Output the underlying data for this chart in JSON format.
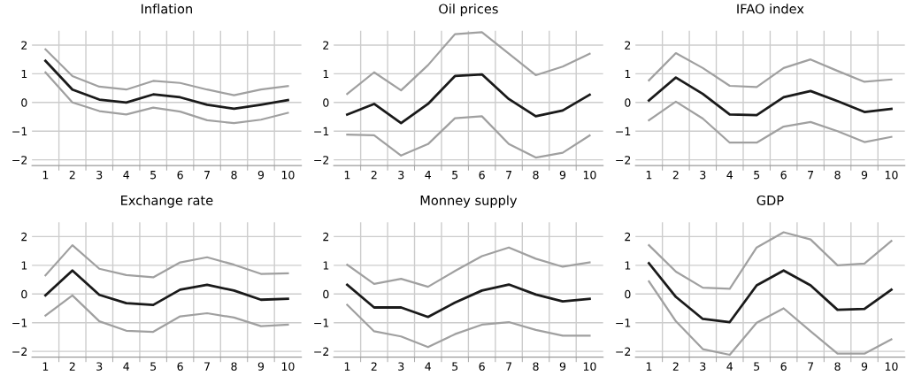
{
  "chart_data": [
    {
      "type": "line",
      "title": "Inflation",
      "x": [
        1,
        2,
        3,
        4,
        5,
        6,
        7,
        8,
        9,
        10
      ],
      "xlim": [
        0.5,
        10.5
      ],
      "ylim": [
        -2.2,
        2.5
      ],
      "yticks": [
        -2,
        -1,
        0,
        1,
        2
      ],
      "xticks": [
        1,
        2,
        3,
        4,
        5,
        6,
        7,
        8,
        9,
        10,
        {
          "value": 1.5,
          "label": null
        },
        {
          "value": 2.5,
          "label": null
        },
        {
          "value": 3.5,
          "label": null
        },
        {
          "value": 4.5,
          "label": null
        },
        {
          "value": 5.5,
          "label": null
        },
        {
          "value": 6.5,
          "label": null
        },
        {
          "value": 7.5,
          "label": null
        },
        {
          "value": 8.5,
          "label": null
        },
        {
          "value": 9.5,
          "label": null
        }
      ],
      "grid": true,
      "series": [
        {
          "color": "#a0a0a0",
          "values": [
            1.85,
            0.92,
            0.55,
            0.45,
            0.75,
            0.68,
            0.45,
            0.25,
            0.45,
            0.57
          ]
        },
        {
          "color": "#a0a0a0",
          "values": [
            1.05,
            0.0,
            -0.3,
            -0.42,
            -0.18,
            -0.32,
            -0.62,
            -0.72,
            -0.6,
            -0.36
          ]
        },
        {
          "color": "#1a1a1a",
          "values": [
            1.45,
            0.45,
            0.1,
            0.0,
            0.28,
            0.18,
            -0.08,
            -0.22,
            -0.08,
            0.08
          ]
        }
      ]
    },
    {
      "type": "line",
      "title": "Oil prices",
      "x": [
        1,
        2,
        3,
        4,
        5,
        6,
        7,
        8,
        9,
        10
      ],
      "xlim": [
        0.5,
        10.5
      ],
      "ylim": [
        -2.2,
        2.5
      ],
      "yticks": [
        -2,
        -1,
        0,
        1,
        2
      ],
      "xticks": [
        1,
        2,
        3,
        4,
        5,
        6,
        7,
        8,
        9,
        10,
        {
          "value": 1.5,
          "label": null
        },
        {
          "value": 2.5,
          "label": null
        },
        {
          "value": 3.5,
          "label": null
        },
        {
          "value": 4.5,
          "label": null
        },
        {
          "value": 5.5,
          "label": null
        },
        {
          "value": 6.5,
          "label": null
        },
        {
          "value": 7.5,
          "label": null
        },
        {
          "value": 8.5,
          "label": null
        },
        {
          "value": 9.5,
          "label": null
        }
      ],
      "grid": true,
      "series": [
        {
          "color": "#a0a0a0",
          "values": [
            0.3,
            1.05,
            0.42,
            1.3,
            2.38,
            2.45,
            1.7,
            0.95,
            1.25,
            1.7
          ]
        },
        {
          "color": "#a0a0a0",
          "values": [
            -1.12,
            -1.14,
            -1.85,
            -1.45,
            -0.55,
            -0.48,
            -1.45,
            -1.92,
            -1.75,
            -1.15
          ]
        },
        {
          "color": "#1a1a1a",
          "values": [
            -0.42,
            -0.05,
            -0.72,
            -0.05,
            0.92,
            0.98,
            0.12,
            -0.48,
            -0.28,
            0.27
          ]
        }
      ]
    },
    {
      "type": "line",
      "title": "IFAO index",
      "x": [
        1,
        2,
        3,
        4,
        5,
        6,
        7,
        8,
        9,
        10
      ],
      "xlim": [
        0.5,
        10.5
      ],
      "ylim": [
        -2.2,
        2.5
      ],
      "yticks": [
        -2,
        -1,
        0,
        1,
        2
      ],
      "xticks": [
        1,
        2,
        3,
        4,
        5,
        6,
        7,
        8,
        9,
        10,
        {
          "value": 1.5,
          "label": null
        },
        {
          "value": 2.5,
          "label": null
        },
        {
          "value": 3.5,
          "label": null
        },
        {
          "value": 4.5,
          "label": null
        },
        {
          "value": 5.5,
          "label": null
        },
        {
          "value": 6.5,
          "label": null
        },
        {
          "value": 7.5,
          "label": null
        },
        {
          "value": 8.5,
          "label": null
        },
        {
          "value": 9.5,
          "label": null
        }
      ],
      "grid": true,
      "series": [
        {
          "color": "#a0a0a0",
          "values": [
            0.77,
            1.72,
            1.2,
            0.58,
            0.54,
            1.2,
            1.5,
            1.1,
            0.72,
            0.8
          ]
        },
        {
          "color": "#a0a0a0",
          "values": [
            -0.62,
            0.03,
            -0.56,
            -1.4,
            -1.4,
            -0.84,
            -0.68,
            -1.0,
            -1.38,
            -1.2
          ]
        },
        {
          "color": "#1a1a1a",
          "values": [
            0.07,
            0.87,
            0.3,
            -0.42,
            -0.44,
            0.18,
            0.4,
            0.05,
            -0.33,
            -0.22
          ]
        }
      ]
    },
    {
      "type": "line",
      "title": "Exchange rate",
      "x": [
        1,
        2,
        3,
        4,
        5,
        6,
        7,
        8,
        9,
        10
      ],
      "xlim": [
        0.5,
        10.5
      ],
      "ylim": [
        -2.2,
        2.5
      ],
      "yticks": [
        -2,
        -1,
        0,
        1,
        2
      ],
      "xticks": [
        1,
        2,
        3,
        4,
        5,
        6,
        7,
        8,
        9,
        10,
        {
          "value": 1.5,
          "label": null
        },
        {
          "value": 2.5,
          "label": null
        },
        {
          "value": 3.5,
          "label": null
        },
        {
          "value": 4.5,
          "label": null
        },
        {
          "value": 5.5,
          "label": null
        },
        {
          "value": 6.5,
          "label": null
        },
        {
          "value": 7.5,
          "label": null
        },
        {
          "value": 8.5,
          "label": null
        },
        {
          "value": 9.5,
          "label": null
        }
      ],
      "grid": true,
      "series": [
        {
          "color": "#a0a0a0",
          "values": [
            0.65,
            1.7,
            0.88,
            0.66,
            0.58,
            1.1,
            1.28,
            1.02,
            0.7,
            0.72
          ]
        },
        {
          "color": "#a0a0a0",
          "values": [
            -0.75,
            -0.05,
            -0.95,
            -1.28,
            -1.32,
            -0.78,
            -0.67,
            -0.82,
            -1.12,
            -1.07
          ]
        },
        {
          "color": "#1a1a1a",
          "values": [
            -0.05,
            0.82,
            -0.03,
            -0.32,
            -0.38,
            0.15,
            0.32,
            0.12,
            -0.2,
            -0.17
          ]
        }
      ]
    },
    {
      "type": "line",
      "title": "Monney supply",
      "x": [
        1,
        2,
        3,
        4,
        5,
        6,
        7,
        8,
        9,
        10
      ],
      "xlim": [
        0.5,
        10.5
      ],
      "ylim": [
        -2.2,
        2.5
      ],
      "yticks": [
        -2,
        -1,
        0,
        1,
        2
      ],
      "xticks": [
        1,
        2,
        3,
        4,
        5,
        6,
        7,
        8,
        9,
        10,
        {
          "value": 1.5,
          "label": null
        },
        {
          "value": 2.5,
          "label": null
        },
        {
          "value": 3.5,
          "label": null
        },
        {
          "value": 4.5,
          "label": null
        },
        {
          "value": 5.5,
          "label": null
        },
        {
          "value": 6.5,
          "label": null
        },
        {
          "value": 7.5,
          "label": null
        },
        {
          "value": 8.5,
          "label": null
        },
        {
          "value": 9.5,
          "label": null
        }
      ],
      "grid": true,
      "series": [
        {
          "color": "#a0a0a0",
          "values": [
            1.02,
            0.35,
            0.53,
            0.25,
            0.8,
            1.32,
            1.62,
            1.23,
            0.95,
            1.1
          ]
        },
        {
          "color": "#a0a0a0",
          "values": [
            -0.38,
            -1.3,
            -1.48,
            -1.85,
            -1.4,
            -1.07,
            -0.98,
            -1.25,
            -1.45,
            -1.45
          ]
        },
        {
          "color": "#1a1a1a",
          "values": [
            0.32,
            -0.47,
            -0.47,
            -0.8,
            -0.3,
            0.12,
            0.33,
            -0.02,
            -0.26,
            -0.17
          ]
        }
      ]
    },
    {
      "type": "line",
      "title": "GDP",
      "x": [
        1,
        2,
        3,
        4,
        5,
        6,
        7,
        8,
        9,
        10
      ],
      "xlim": [
        0.5,
        10.5
      ],
      "ylim": [
        -2.2,
        2.5
      ],
      "yticks": [
        -2,
        -1,
        0,
        1,
        2
      ],
      "xticks": [
        1,
        2,
        3,
        4,
        5,
        6,
        7,
        8,
        9,
        10,
        {
          "value": 1.5,
          "label": null
        },
        {
          "value": 2.5,
          "label": null
        },
        {
          "value": 3.5,
          "label": null
        },
        {
          "value": 4.5,
          "label": null
        },
        {
          "value": 5.5,
          "label": null
        },
        {
          "value": 6.5,
          "label": null
        },
        {
          "value": 7.5,
          "label": null
        },
        {
          "value": 8.5,
          "label": null
        },
        {
          "value": 9.5,
          "label": null
        }
      ],
      "grid": true,
      "series": [
        {
          "color": "#a0a0a0",
          "values": [
            1.7,
            0.78,
            0.22,
            0.18,
            1.62,
            2.15,
            1.9,
            1.0,
            1.06,
            1.85
          ]
        },
        {
          "color": "#a0a0a0",
          "values": [
            0.44,
            -0.95,
            -1.92,
            -2.12,
            -1.0,
            -0.5,
            -1.3,
            -2.08,
            -2.08,
            -1.58
          ]
        },
        {
          "color": "#1a1a1a",
          "values": [
            1.07,
            -0.1,
            -0.87,
            -0.98,
            0.3,
            0.82,
            0.3,
            -0.55,
            -0.52,
            0.15
          ]
        }
      ]
    }
  ]
}
